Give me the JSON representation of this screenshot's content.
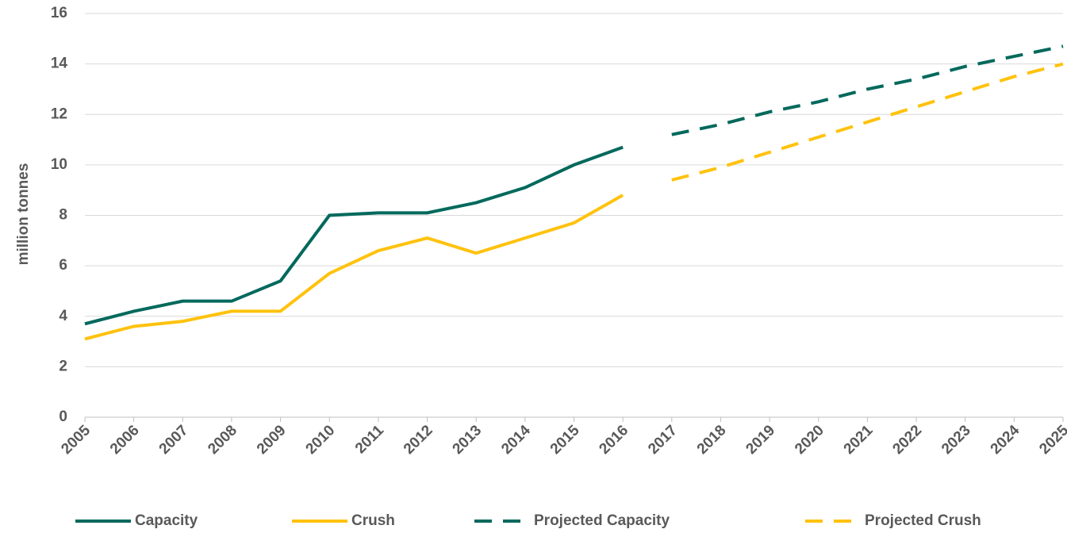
{
  "chart_data": {
    "type": "line",
    "y_label": "million tonnes",
    "x": [
      2005,
      2006,
      2007,
      2008,
      2009,
      2010,
      2011,
      2012,
      2013,
      2014,
      2015,
      2016,
      2017,
      2018,
      2019,
      2020,
      2021,
      2022,
      2023,
      2024,
      2025
    ],
    "xlim": [
      2005,
      2025
    ],
    "xticks": [
      2005,
      2006,
      2007,
      2008,
      2009,
      2010,
      2011,
      2012,
      2013,
      2014,
      2015,
      2016,
      2017,
      2018,
      2019,
      2020,
      2021,
      2022,
      2023,
      2024,
      2025
    ],
    "ylim": [
      0,
      16
    ],
    "yticks": [
      0,
      2,
      4,
      6,
      8,
      10,
      12,
      14,
      16
    ],
    "grid": true,
    "legend": "bottom",
    "series": [
      {
        "name": "Capacity",
        "color": "#00695c",
        "dashed": false,
        "values": [
          3.7,
          4.2,
          4.6,
          4.6,
          5.4,
          8.0,
          8.1,
          8.1,
          8.5,
          9.1,
          10.0,
          10.7,
          null,
          null,
          null,
          null,
          null,
          null,
          null,
          null,
          null
        ]
      },
      {
        "name": "Crush",
        "color": "#ffc20e",
        "dashed": false,
        "values": [
          3.1,
          3.6,
          3.8,
          4.2,
          4.2,
          5.7,
          6.6,
          7.1,
          6.5,
          7.1,
          7.7,
          8.8,
          null,
          null,
          null,
          null,
          null,
          null,
          null,
          null,
          null
        ]
      },
      {
        "name": "Projected Capacity",
        "color": "#00695c",
        "dashed": true,
        "values": [
          null,
          null,
          null,
          null,
          null,
          null,
          null,
          null,
          null,
          null,
          null,
          null,
          11.2,
          11.6,
          12.1,
          12.5,
          13.0,
          13.4,
          13.9,
          14.3,
          14.7
        ]
      },
      {
        "name": "Projected Crush",
        "color": "#ffc20e",
        "dashed": true,
        "values": [
          null,
          null,
          null,
          null,
          null,
          null,
          null,
          null,
          null,
          null,
          null,
          null,
          9.4,
          9.9,
          10.5,
          11.1,
          11.7,
          12.3,
          12.9,
          13.5,
          14.0
        ]
      }
    ]
  }
}
